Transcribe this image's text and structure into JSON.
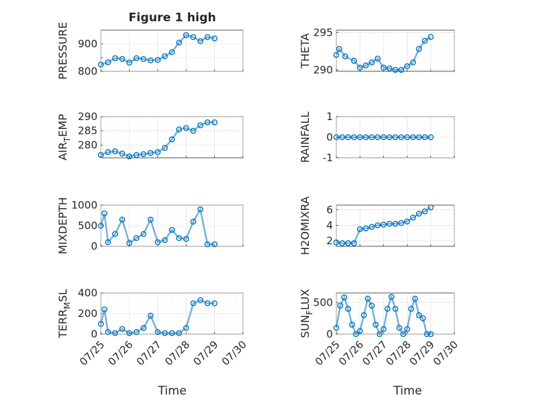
{
  "figure": {
    "title": "Figure 1 high",
    "xlabel": "Time",
    "marker_color": "#0072BD"
  },
  "chart_data": [
    {
      "type": "scatter",
      "ylabel": "PRESSURE",
      "title": "Figure 1 high",
      "xlim": [
        "07/25",
        "07/30"
      ],
      "xticks": [
        "07/25",
        "07/26",
        "07/27",
        "07/28",
        "07/29",
        "07/30"
      ],
      "ylim": [
        800,
        950
      ],
      "yticks": [
        800,
        850,
        900
      ],
      "ytick_labels": [
        "800",
        "",
        "900"
      ],
      "x": [
        "07/25 00:00",
        "07/25 06:00",
        "07/25 12:00",
        "07/25 18:00",
        "07/26 00:00",
        "07/26 06:00",
        "07/26 12:00",
        "07/26 18:00",
        "07/27 00:00",
        "07/27 06:00",
        "07/27 12:00",
        "07/27 18:00",
        "07/28 00:00",
        "07/28 06:00",
        "07/28 12:00",
        "07/28 18:00",
        "07/29 00:00"
      ],
      "y": [
        825,
        833,
        848,
        845,
        832,
        848,
        845,
        840,
        842,
        855,
        870,
        905,
        932,
        925,
        910,
        925,
        920
      ]
    },
    {
      "type": "scatter",
      "ylabel": "THETA",
      "xlim": [
        "07/25",
        "07/30"
      ],
      "xticks": [
        "07/25",
        "07/26",
        "07/27",
        "07/28",
        "07/29",
        "07/30"
      ],
      "ylim": [
        289.8,
        295.3
      ],
      "yticks": [
        290,
        295
      ],
      "ytick_labels": [
        "290",
        "295"
      ],
      "x": [
        "07/25 00:00",
        "07/25 03:00",
        "07/25 09:00",
        "07/25 18:00",
        "07/26 00:00",
        "07/26 06:00",
        "07/26 12:00",
        "07/26 18:00",
        "07/27 00:00",
        "07/27 06:00",
        "07/27 12:00",
        "07/27 18:00",
        "07/28 00:00",
        "07/28 06:00",
        "07/28 12:00",
        "07/28 18:00",
        "07/29 00:00"
      ],
      "y": [
        292.0,
        292.8,
        291.8,
        291.2,
        290.3,
        290.6,
        291.0,
        291.5,
        290.3,
        290.2,
        290.0,
        290.0,
        290.5,
        291.0,
        292.8,
        293.9,
        294.4
      ]
    },
    {
      "type": "scatter",
      "ylabel": "AIR_TEMP",
      "ylabel_main": "AIR",
      "ylabel_sub": "T",
      "ylabel_rest": "EMP",
      "xlim": [
        "07/25",
        "07/30"
      ],
      "xticks": [
        "07/25",
        "07/26",
        "07/27",
        "07/28",
        "07/29",
        "07/30"
      ],
      "ylim": [
        275.5,
        290
      ],
      "yticks": [
        280,
        285,
        290
      ],
      "ytick_labels": [
        "280",
        "285",
        "290"
      ],
      "x": [
        "07/25 00:00",
        "07/25 06:00",
        "07/25 12:00",
        "07/25 18:00",
        "07/26 00:00",
        "07/26 06:00",
        "07/26 12:00",
        "07/26 18:00",
        "07/27 00:00",
        "07/27 06:00",
        "07/27 12:00",
        "07/27 18:00",
        "07/28 00:00",
        "07/28 06:00",
        "07/28 12:00",
        "07/28 18:00",
        "07/29 00:00"
      ],
      "y": [
        276.5,
        277.5,
        277.8,
        277.0,
        276.0,
        276.5,
        276.8,
        277.2,
        277.5,
        279.0,
        282.0,
        285.5,
        286.0,
        285.0,
        287.0,
        288.0,
        288.0
      ]
    },
    {
      "type": "scatter",
      "ylabel": "RAINFALL",
      "xlim": [
        "07/25",
        "07/30"
      ],
      "xticks": [
        "07/25",
        "07/26",
        "07/27",
        "07/28",
        "07/29",
        "07/30"
      ],
      "ylim": [
        -1,
        1
      ],
      "yticks": [
        -1,
        0,
        1
      ],
      "ytick_labels": [
        "-1",
        "0",
        "1"
      ],
      "x": [
        "07/25 00:00",
        "07/25 06:00",
        "07/25 12:00",
        "07/25 18:00",
        "07/26 00:00",
        "07/26 06:00",
        "07/26 12:00",
        "07/26 18:00",
        "07/27 00:00",
        "07/27 06:00",
        "07/27 12:00",
        "07/27 18:00",
        "07/28 00:00",
        "07/28 06:00",
        "07/28 12:00",
        "07/28 18:00",
        "07/29 00:00"
      ],
      "y": [
        0,
        0,
        0,
        0,
        0,
        0,
        0,
        0,
        0,
        0,
        0,
        0,
        0,
        0,
        0,
        0,
        0
      ]
    },
    {
      "type": "scatter",
      "ylabel": "MIXDEPTH",
      "xlim": [
        "07/25",
        "07/30"
      ],
      "xticks": [
        "07/25",
        "07/26",
        "07/27",
        "07/28",
        "07/29",
        "07/30"
      ],
      "ylim": [
        0,
        1000
      ],
      "yticks": [
        0,
        500,
        1000
      ],
      "ytick_labels": [
        "0",
        "500",
        "1000"
      ],
      "x": [
        "07/25 00:00",
        "07/25 03:00",
        "07/25 06:00",
        "07/25 12:00",
        "07/25 18:00",
        "07/26 00:00",
        "07/26 06:00",
        "07/26 12:00",
        "07/26 18:00",
        "07/27 00:00",
        "07/27 06:00",
        "07/27 12:00",
        "07/27 18:00",
        "07/28 00:00",
        "07/28 06:00",
        "07/28 12:00",
        "07/28 18:00",
        "07/29 00:00"
      ],
      "y": [
        500,
        800,
        100,
        300,
        650,
        80,
        200,
        300,
        650,
        100,
        150,
        400,
        200,
        180,
        600,
        900,
        50,
        50
      ]
    },
    {
      "type": "scatter",
      "ylabel": "H2OMIXRA",
      "xlim": [
        "07/25",
        "07/30"
      ],
      "xticks": [
        "07/25",
        "07/26",
        "07/27",
        "07/28",
        "07/29",
        "07/30"
      ],
      "ylim": [
        1.3,
        6.6
      ],
      "yticks": [
        2,
        4,
        6
      ],
      "ytick_labels": [
        "2",
        "4",
        "6"
      ],
      "x": [
        "07/25 00:00",
        "07/25 06:00",
        "07/25 12:00",
        "07/25 18:00",
        "07/26 00:00",
        "07/26 06:00",
        "07/26 12:00",
        "07/26 18:00",
        "07/27 00:00",
        "07/27 06:00",
        "07/27 12:00",
        "07/27 18:00",
        "07/28 00:00",
        "07/28 06:00",
        "07/28 12:00",
        "07/28 18:00",
        "07/29 00:00"
      ],
      "y": [
        1.8,
        1.7,
        1.7,
        1.7,
        3.5,
        3.6,
        3.8,
        4.0,
        4.1,
        4.2,
        4.2,
        4.3,
        4.5,
        5.0,
        5.5,
        5.8,
        6.3
      ]
    },
    {
      "type": "scatter",
      "ylabel": "TERR_MSL",
      "ylabel_main": "TERR",
      "ylabel_sub": "M",
      "ylabel_rest": "SL",
      "xlim": [
        "07/25",
        "07/30"
      ],
      "xticks": [
        "07/25",
        "07/26",
        "07/27",
        "07/28",
        "07/29",
        "07/30"
      ],
      "ylim": [
        0,
        400
      ],
      "yticks": [
        0,
        200,
        400
      ],
      "ytick_labels": [
        "0",
        "200",
        "400"
      ],
      "x": [
        "07/25 00:00",
        "07/25 03:00",
        "07/25 06:00",
        "07/25 12:00",
        "07/25 18:00",
        "07/26 00:00",
        "07/26 06:00",
        "07/26 12:00",
        "07/26 18:00",
        "07/27 00:00",
        "07/27 06:00",
        "07/27 12:00",
        "07/27 18:00",
        "07/28 00:00",
        "07/28 06:00",
        "07/28 12:00",
        "07/28 18:00",
        "07/29 00:00"
      ],
      "y": [
        100,
        240,
        20,
        10,
        50,
        10,
        20,
        60,
        180,
        20,
        10,
        10,
        10,
        60,
        300,
        330,
        300,
        300
      ]
    },
    {
      "type": "scatter",
      "ylabel": "SUN_FLUX",
      "ylabel_main": "SUN",
      "ylabel_sub": "F",
      "ylabel_rest": "LUX",
      "xlim": [
        "07/25",
        "07/30"
      ],
      "xticks": [
        "07/25",
        "07/26",
        "07/27",
        "07/28",
        "07/29",
        "07/30"
      ],
      "ylim": [
        0,
        650
      ],
      "yticks": [
        0,
        500
      ],
      "ytick_labels": [
        "0",
        "500"
      ],
      "x": [
        "07/25 00:00",
        "07/25 04:00",
        "07/25 08:00",
        "07/25 12:00",
        "07/25 16:00",
        "07/25 20:00",
        "07/26 00:00",
        "07/26 04:00",
        "07/26 08:00",
        "07/26 12:00",
        "07/26 16:00",
        "07/26 20:00",
        "07/27 00:00",
        "07/27 04:00",
        "07/27 08:00",
        "07/27 12:00",
        "07/27 16:00",
        "07/27 20:00",
        "07/28 00:00",
        "07/28 04:00",
        "07/28 08:00",
        "07/28 12:00",
        "07/28 16:00",
        "07/28 20:00",
        "07/29 00:00"
      ],
      "y": [
        100,
        450,
        580,
        400,
        150,
        0,
        50,
        300,
        560,
        450,
        150,
        0,
        80,
        400,
        590,
        400,
        100,
        0,
        80,
        400,
        560,
        300,
        250,
        0,
        0
      ]
    }
  ]
}
